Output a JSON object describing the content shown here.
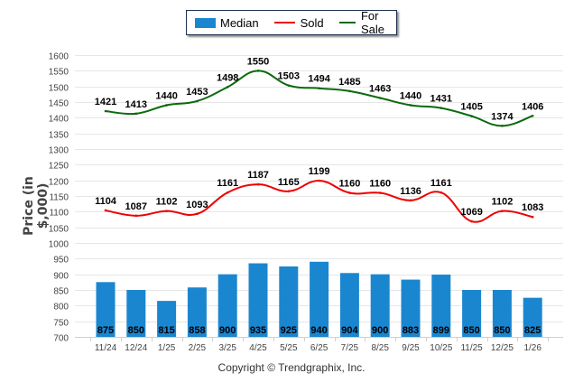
{
  "chart_data": {
    "type": "bar",
    "title": "",
    "xlabel": "",
    "ylabel": "Price (in $,000)",
    "ylim": [
      700,
      1600
    ],
    "yticks": [
      700,
      750,
      800,
      850,
      900,
      950,
      1000,
      1050,
      1100,
      1150,
      1200,
      1250,
      1300,
      1350,
      1400,
      1450,
      1500,
      1550,
      1600
    ],
    "grid": true,
    "legend_position": "top-center",
    "categories": [
      "11/24",
      "12/24",
      "1/25",
      "2/25",
      "3/25",
      "4/25",
      "5/25",
      "6/25",
      "7/25",
      "8/25",
      "9/25",
      "10/25",
      "11/25",
      "12/25",
      "1/26"
    ],
    "series": [
      {
        "name": "Median",
        "kind": "bar",
        "color": "#1b86d0",
        "values": [
          875,
          850,
          815,
          858,
          900,
          935,
          925,
          940,
          904,
          900,
          883,
          899,
          850,
          850,
          825
        ]
      },
      {
        "name": "Sold",
        "kind": "line",
        "color": "#ee0000",
        "values": [
          1104,
          1087,
          1102,
          1093,
          1161,
          1187,
          1165,
          1199,
          1160,
          1160,
          1136,
          1161,
          1069,
          1102,
          1083
        ]
      },
      {
        "name": "For Sale",
        "kind": "line",
        "color": "#0b6a0b",
        "values": [
          1421,
          1413,
          1440,
          1453,
          1498,
          1550,
          1503,
          1494,
          1485,
          1463,
          1440,
          1431,
          1405,
          1374,
          1406
        ]
      }
    ]
  },
  "legend": {
    "median": "Median",
    "sold": "Sold",
    "for_sale": "For Sale"
  },
  "footer": {
    "copyright": "Copyright © Trendgraphix, Inc."
  }
}
